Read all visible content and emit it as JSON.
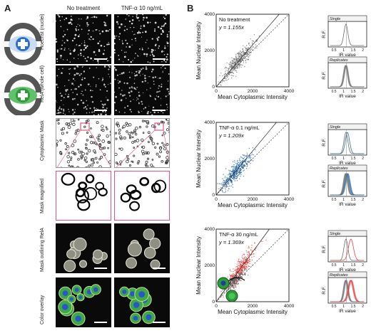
{
  "panelA": {
    "letter": "A",
    "columns": [
      "No treatment",
      "TNF-α 10 ng/mL"
    ],
    "rows": [
      "Hoechst (nuclei)",
      "RelA (whole cell)",
      "Cytoplasmic Mask",
      "Mask magnified",
      "Mask outlining RelA",
      "Color overlay"
    ]
  },
  "panelB": {
    "letter": "B",
    "chart_data": [
      {
        "type": "scatter",
        "annotation": "No treatment",
        "fit_label": "y = 1.155x",
        "slope": 1.155,
        "xlabel": "Mean Cytoplasmic Intensity",
        "ylabel": "Mean Nuclear Intensity",
        "xlim": [
          0,
          4000
        ],
        "ylim": [
          0,
          4000
        ],
        "xticks": [
          "0",
          "2000",
          "4000"
        ],
        "yticks": [
          "0",
          "2000",
          "4000"
        ],
        "cloud_center": [
          1200,
          1400
        ],
        "color": "#6b6b6b"
      },
      {
        "type": "scatter",
        "annotation": "TNF-α 0.1 ng/mL",
        "fit_label": "y = 1.209x",
        "slope": 1.209,
        "xlabel": "Mean Cytoplasmic Intensity",
        "ylabel": "Mean Nuclear Intensity",
        "xlim": [
          0,
          4000
        ],
        "ylim": [
          0,
          4000
        ],
        "xticks": [
          "0",
          "2000",
          "4000"
        ],
        "yticks": [
          "0",
          "2000",
          "4000"
        ],
        "cloud_center": [
          1100,
          1300
        ],
        "color": "#1f5fa0"
      },
      {
        "type": "scatter",
        "annotation": "TNF-α 30 ng/mL",
        "fit_label": "y = 1.369x",
        "slope": 1.369,
        "xlabel": "Mean Cytoplasmic Intensity",
        "ylabel": "Mean Nuclear Intensity",
        "xlim": [
          0,
          4000
        ],
        "ylim": [
          0,
          4000
        ],
        "xticks": [
          "0",
          "2000",
          "4000"
        ],
        "yticks": [
          "0",
          "2000",
          "4000"
        ],
        "cloud_center": [
          1300,
          1800
        ],
        "color": "#e84040"
      }
    ],
    "histograms": {
      "ylabel": "R.F.",
      "xlabel": "IR value",
      "xticks": [
        "0.5",
        "1",
        "1.5",
        "2"
      ],
      "single_label": "Single",
      "replicates_label": "Replicates",
      "colors": [
        "#6b6b6b",
        "#2d6fae",
        "#e84040"
      ]
    }
  }
}
